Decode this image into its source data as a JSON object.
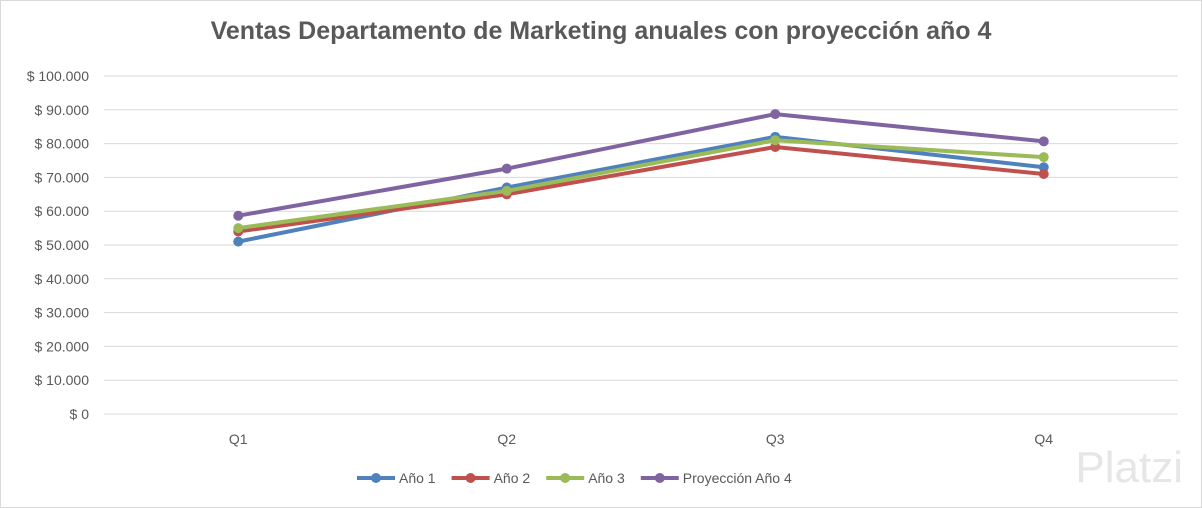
{
  "watermark": "Platzi",
  "chart_data": {
    "type": "line",
    "title": "Ventas Departamento de Marketing anuales con proyección año 4",
    "categories": [
      "Q1",
      "Q2",
      "Q3",
      "Q4"
    ],
    "ylim": [
      0,
      100000
    ],
    "yticks": [
      0,
      10000,
      20000,
      30000,
      40000,
      50000,
      60000,
      70000,
      80000,
      90000,
      100000
    ],
    "ytick_labels": [
      "$ 0",
      "$ 10.000",
      "$ 20.000",
      "$ 30.000",
      "$ 40.000",
      "$ 50.000",
      "$ 60.000",
      "$ 70.000",
      "$ 80.000",
      "$ 90.000",
      "$ 100.000"
    ],
    "grid": true,
    "legend": "bottom",
    "series": [
      {
        "name": "Año 1",
        "color": "#4f81bd",
        "values": [
          51000,
          67000,
          82000,
          73000
        ]
      },
      {
        "name": "Año 2",
        "color": "#c0504d",
        "values": [
          54000,
          65000,
          79000,
          71000
        ]
      },
      {
        "name": "Año 3",
        "color": "#9bbb59",
        "values": [
          55000,
          66000,
          81000,
          76000
        ]
      },
      {
        "name": "Proyección Año 4",
        "color": "#8064a2",
        "values": [
          58667,
          72600,
          88733,
          80667
        ]
      }
    ]
  }
}
